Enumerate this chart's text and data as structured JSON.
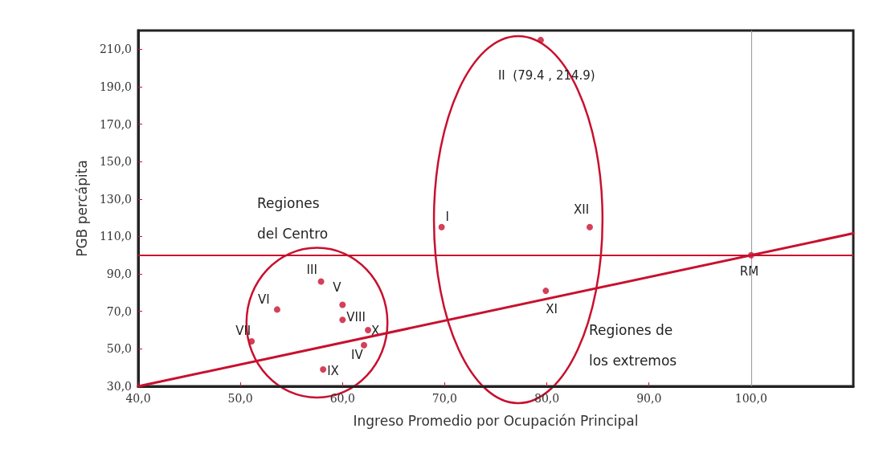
{
  "chart_data": {
    "type": "scatter",
    "xlabel": "Ingreso Promedio por Ocupación Principal",
    "ylabel": "PGB percápita",
    "xlim": [
      40,
      110
    ],
    "ylim": [
      30,
      220
    ],
    "xticks": [
      {
        "value": 40,
        "label": "40,0"
      },
      {
        "value": 50,
        "label": "50,0"
      },
      {
        "value": 60,
        "label": "60,0"
      },
      {
        "value": 70,
        "label": "70,0"
      },
      {
        "value": 80,
        "label": "80,0"
      },
      {
        "value": 90,
        "label": "90,0"
      },
      {
        "value": 100,
        "label": "100,0"
      }
    ],
    "yticks": [
      {
        "value": 30,
        "label": "30,0"
      },
      {
        "value": 50,
        "label": "50,0"
      },
      {
        "value": 70,
        "label": "70,0"
      },
      {
        "value": 90,
        "label": "90,0"
      },
      {
        "value": 110,
        "label": "110,0"
      },
      {
        "value": 130,
        "label": "130,0"
      },
      {
        "value": 150,
        "label": "150,0"
      },
      {
        "value": 170,
        "label": "170,0"
      },
      {
        "value": 190,
        "label": "190,0"
      },
      {
        "value": 210,
        "label": "210,0"
      }
    ],
    "grid": false,
    "marker": "circle",
    "series": [
      {
        "color": "#c8102e",
        "x": [
          69.7,
          79.4,
          57.9,
          62.1,
          60.0,
          53.6,
          51.1,
          60.0,
          58.1,
          62.5,
          79.9,
          84.2,
          100
        ],
        "values": [
          115,
          214.9,
          86,
          52,
          73.5,
          71,
          54,
          65.5,
          39,
          60,
          81,
          115,
          100
        ]
      },
      {
        "type": "line",
        "marker": "none",
        "color": "#c8102e",
        "x": [
          40,
          110
        ],
        "values": [
          30,
          111.7
        ]
      }
    ],
    "ref_lines": [
      {
        "axis": "y",
        "value": 100,
        "color": "#c8102e"
      },
      {
        "axis": "x",
        "value": 100,
        "color": "#999999"
      }
    ],
    "annotations": [
      {
        "text": "I",
        "x": 69.7,
        "y": 115
      },
      {
        "text": "II  (79.4 , 214.9)",
        "x": 79.4,
        "y": 214.9
      },
      {
        "text": "III",
        "x": 57.9,
        "y": 86
      },
      {
        "text": "IV",
        "x": 62.1,
        "y": 52
      },
      {
        "text": "V",
        "x": 60.0,
        "y": 73.5
      },
      {
        "text": "VI",
        "x": 53.6,
        "y": 71
      },
      {
        "text": "VII",
        "x": 51.1,
        "y": 54
      },
      {
        "text": "VIII",
        "x": 60.0,
        "y": 65.5
      },
      {
        "text": "IX",
        "x": 58.1,
        "y": 39
      },
      {
        "text": "X",
        "x": 62.5,
        "y": 60
      },
      {
        "text": "XI",
        "x": 79.9,
        "y": 81
      },
      {
        "text": "XII",
        "x": 84.2,
        "y": 115
      },
      {
        "text": "RM",
        "x": 100,
        "y": 100
      },
      "Regiones\ndel Centro",
      "Regiones de\nlos extremos"
    ]
  }
}
